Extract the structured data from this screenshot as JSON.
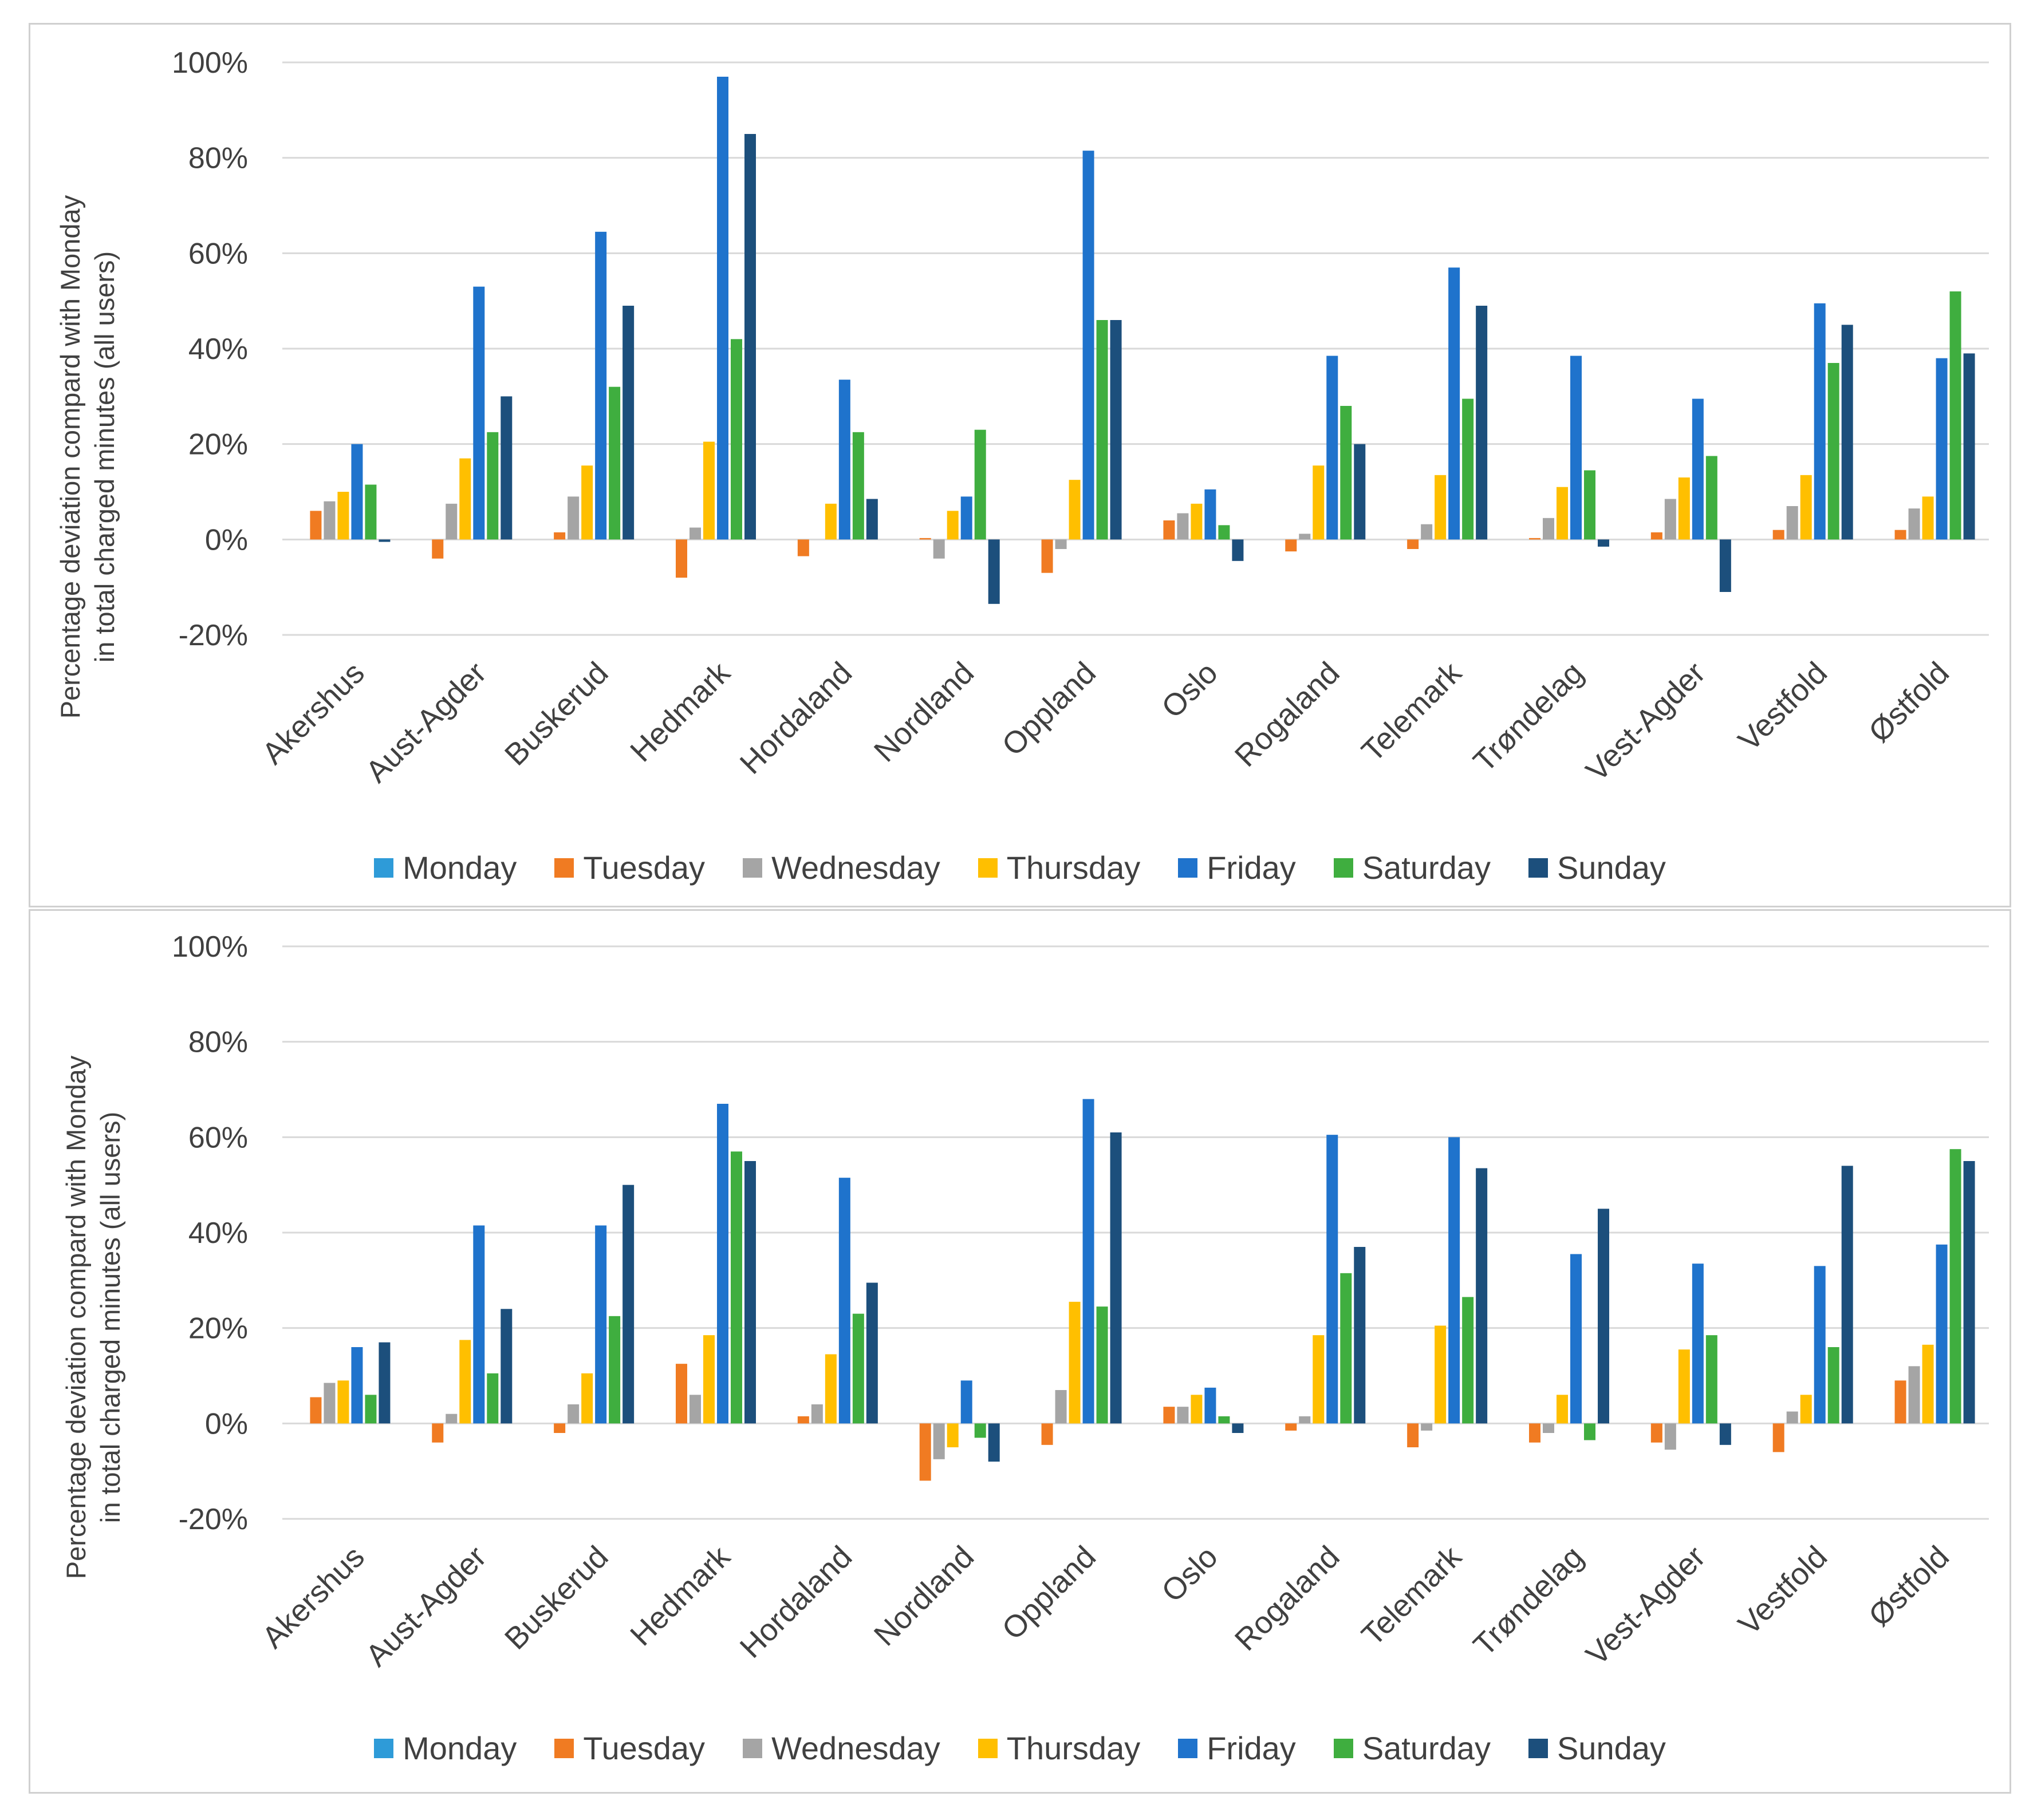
{
  "legend": [
    {
      "label": "Monday",
      "color": "#2e9bd8"
    },
    {
      "label": "Tuesday",
      "color": "#f07b22"
    },
    {
      "label": "Wednesday",
      "color": "#a5a5a5"
    },
    {
      "label": "Thursday",
      "color": "#ffbf00"
    },
    {
      "label": "Friday",
      "color": "#1f73cc"
    },
    {
      "label": "Saturday",
      "color": "#3fae3f"
    },
    {
      "label": "Sunday",
      "color": "#1c4f7c"
    }
  ],
  "chart_data": [
    {
      "type": "bar",
      "ylabel_line1": "Percentage deviation compard with Monday",
      "ylabel_line2": "in total charged minutes (all users)",
      "ylim": [
        -20,
        100
      ],
      "yticks": [
        "100%",
        "80%",
        "60%",
        "40%",
        "20%",
        "0%",
        "-20%"
      ],
      "grid": true,
      "legend_position": "bottom",
      "categories": [
        "Akershus",
        "Aust-Agder",
        "Buskerud",
        "Hedmark",
        "Hordaland",
        "Nordland",
        "Oppland",
        "Oslo",
        "Rogaland",
        "Telemark",
        "Trøndelag",
        "Vest-Agder",
        "Vestfold",
        "Østfold"
      ],
      "series": [
        {
          "name": "Monday",
          "values": [
            0,
            0,
            0,
            0,
            0,
            0,
            0,
            0,
            0,
            0,
            0,
            0,
            0,
            0
          ]
        },
        {
          "name": "Tuesday",
          "values": [
            6,
            -4,
            1.5,
            -8,
            -3.5,
            0.3,
            -7,
            4,
            -2.5,
            -2,
            0.3,
            1.5,
            2,
            2
          ]
        },
        {
          "name": "Wednesday",
          "values": [
            8,
            7.5,
            9,
            2.5,
            0,
            -4,
            -2,
            5.5,
            1.2,
            3.2,
            4.5,
            8.5,
            7,
            6.5
          ]
        },
        {
          "name": "Thursday",
          "values": [
            10,
            17,
            15.5,
            20.5,
            7.5,
            6,
            12.5,
            7.5,
            15.5,
            13.5,
            11,
            13,
            13.5,
            9
          ]
        },
        {
          "name": "Friday",
          "values": [
            20,
            53,
            64.5,
            97,
            33.5,
            9,
            81.5,
            10.5,
            38.5,
            57,
            38.5,
            29.5,
            49.5,
            38
          ]
        },
        {
          "name": "Saturday",
          "values": [
            11.5,
            22.5,
            32,
            42,
            22.5,
            23,
            46,
            3,
            28,
            29.5,
            14.5,
            17.5,
            37,
            52
          ]
        },
        {
          "name": "Sunday",
          "values": [
            -0.5,
            30,
            49,
            85,
            8.5,
            -13.5,
            46,
            -4.5,
            20,
            49,
            -1.5,
            -11,
            45,
            39
          ]
        }
      ]
    },
    {
      "type": "bar",
      "ylabel_line1": "Percentage deviation compard with Monday",
      "ylabel_line2": "in total charged minutes (all users)",
      "ylim": [
        -20,
        100
      ],
      "yticks": [
        "100%",
        "80%",
        "60%",
        "40%",
        "20%",
        "0%",
        "-20%"
      ],
      "grid": true,
      "legend_position": "bottom",
      "categories": [
        "Akershus",
        "Aust-Agder",
        "Buskerud",
        "Hedmark",
        "Hordaland",
        "Nordland",
        "Oppland",
        "Oslo",
        "Rogaland",
        "Telemark",
        "Trøndelag",
        "Vest-Agder",
        "Vestfold",
        "Østfold"
      ],
      "series": [
        {
          "name": "Monday",
          "values": [
            0,
            0,
            0,
            0,
            0,
            0,
            0,
            0,
            0,
            0,
            0,
            0,
            0,
            0
          ]
        },
        {
          "name": "Tuesday",
          "values": [
            5.5,
            -4,
            -2,
            12.5,
            1.5,
            -12,
            -4.5,
            3.5,
            -1.5,
            -5,
            -4,
            -4,
            -6,
            9
          ]
        },
        {
          "name": "Wednesday",
          "values": [
            8.5,
            2,
            4,
            6,
            4,
            -7.5,
            7,
            3.5,
            1.5,
            -1.5,
            -2,
            -5.5,
            2.5,
            12
          ]
        },
        {
          "name": "Thursday",
          "values": [
            9,
            17.5,
            10.5,
            18.5,
            14.5,
            -5,
            25.5,
            6,
            18.5,
            20.5,
            6,
            15.5,
            6,
            16.5
          ]
        },
        {
          "name": "Friday",
          "values": [
            16,
            41.5,
            41.5,
            67,
            51.5,
            9,
            68,
            7.5,
            60.5,
            60,
            35.5,
            33.5,
            33,
            37.5
          ]
        },
        {
          "name": "Saturday",
          "values": [
            6,
            10.5,
            22.5,
            57,
            23,
            -3,
            24.5,
            1.5,
            31.5,
            26.5,
            -3.5,
            18.5,
            16,
            57.5
          ]
        },
        {
          "name": "Sunday",
          "values": [
            17,
            24,
            50,
            55,
            29.5,
            -8,
            61,
            -2,
            37,
            53.5,
            45,
            -4.5,
            54,
            55
          ]
        }
      ]
    }
  ]
}
